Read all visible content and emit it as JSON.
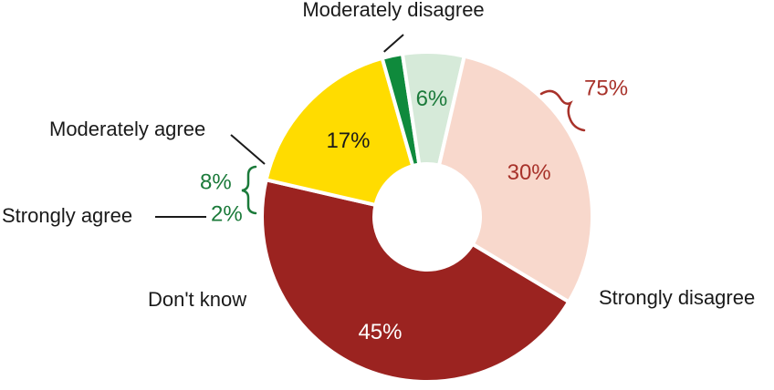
{
  "chart_data": {
    "type": "pie",
    "style": "donut",
    "slices": [
      {
        "label": "Strongly disagree",
        "value": 45,
        "value_label": "45%",
        "color": "#9b2320",
        "text_color": "#ffffff"
      },
      {
        "label": "Don't know",
        "value": 17,
        "value_label": "17%",
        "color": "#ffdc00",
        "text_color": "#1a1a1a"
      },
      {
        "label": "Strongly agree",
        "value": 2,
        "value_label": "2%",
        "color": "#0f8a3c",
        "text_color": "#1b7a3a"
      },
      {
        "label": "Moderately agree",
        "value": 6,
        "value_label": "6%",
        "color": "#d6ead9",
        "text_color": "#1b7a3a"
      },
      {
        "label": "Moderately disagree",
        "value": 30,
        "value_label": "30%",
        "color": "#f8d8cc",
        "text_color": "#a8322a"
      }
    ],
    "groups": [
      {
        "label": "75%",
        "members": [
          "Strongly disagree",
          "Moderately disagree"
        ],
        "color": "#a8322a"
      },
      {
        "label": "8%",
        "members": [
          "Moderately agree",
          "Strongly agree"
        ],
        "color": "#1b7a3a"
      }
    ]
  }
}
